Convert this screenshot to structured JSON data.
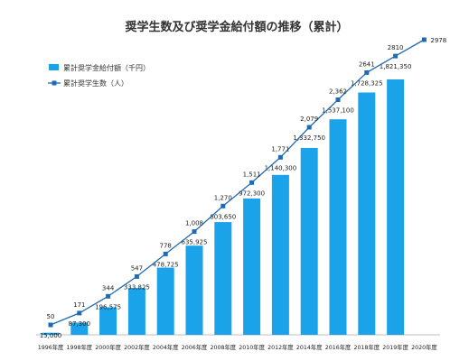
{
  "chart_data": {
    "type": "bar",
    "title": "奨学生数及び奨学金給付額の推移（累計）",
    "categories": [
      "1996年度",
      "1998年度",
      "2000年度",
      "2002年度",
      "2004年度",
      "2006年度",
      "2008年度",
      "2010年度",
      "2012年度",
      "2014年度",
      "2016年度",
      "2018年度",
      "2019年度",
      "2020年度"
    ],
    "series": [
      {
        "name": "累計奨学金給付額（千円）",
        "type": "bar",
        "color": "#1aa3e8",
        "values": [
          15000,
          87300,
          196575,
          333825,
          478725,
          635925,
          803650,
          972300,
          1140300,
          1332750,
          1537100,
          1728325,
          1821350,
          null
        ],
        "labels": [
          "15,000",
          "87,300",
          "196,575",
          "333,825",
          "478,725",
          "635,925",
          "803,650",
          "972,300",
          "1,140,300",
          "1,332,750",
          "1,537,100",
          "1,728,325",
          "1,821,350",
          ""
        ]
      },
      {
        "name": "累計奨学生数（人）",
        "type": "line",
        "color": "#1f6ab5",
        "values": [
          50,
          171,
          344,
          547,
          778,
          1008,
          1270,
          1511,
          1771,
          2079,
          2362,
          2641,
          2810,
          2978
        ],
        "labels": [
          "50",
          "171",
          "344",
          "547",
          "778",
          "1,008",
          "1,270",
          "1,511",
          "1,771",
          "2,079",
          "2,362",
          "2641",
          "2810",
          "2978"
        ]
      }
    ],
    "legend": "top-left",
    "grid": false
  }
}
